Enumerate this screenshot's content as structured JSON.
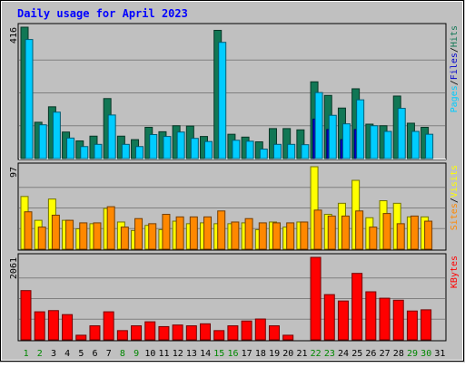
{
  "chart_data": [
    {
      "type": "bar",
      "title": "Daily usage for April 2023",
      "categories": [
        "1",
        "2",
        "3",
        "4",
        "5",
        "6",
        "7",
        "8",
        "9",
        "10",
        "11",
        "12",
        "13",
        "14",
        "15",
        "16",
        "17",
        "18",
        "19",
        "20",
        "21",
        "22",
        "23",
        "24",
        "25",
        "26",
        "27",
        "28",
        "29",
        "30",
        "31"
      ],
      "weekend_categories": [
        "1",
        "2",
        "8",
        "9",
        "15",
        "16",
        "22",
        "23",
        "29",
        "30"
      ],
      "ylim": [
        0,
        416
      ],
      "ytick_label": "416",
      "series": [
        {
          "name": "Hits",
          "color": "#117755",
          "values": [
            416,
            115,
            164,
            84,
            56,
            71,
            190,
            71,
            60,
            99,
            85,
            104,
            103,
            70,
            406,
            77,
            68,
            53,
            95,
            95,
            91,
            243,
            200,
            160,
            221,
            109,
            104,
            198,
            112,
            99,
            0
          ]
        },
        {
          "name": "Files",
          "color": "#0000cc",
          "values": [
            0,
            0,
            0,
            0,
            0,
            0,
            0,
            0,
            0,
            0,
            0,
            0,
            0,
            0,
            0,
            0,
            0,
            0,
            0,
            0,
            0,
            125,
            92,
            60,
            92,
            0,
            0,
            0,
            0,
            0,
            0
          ]
        },
        {
          "name": "Pages",
          "color": "#00ccff",
          "values": [
            377,
            107,
            147,
            65,
            38,
            45,
            138,
            45,
            38,
            76,
            70,
            84,
            64,
            54,
            368,
            58,
            55,
            30,
            45,
            45,
            44,
            209,
            137,
            110,
            186,
            104,
            86,
            159,
            86,
            77,
            0
          ]
        }
      ],
      "legend_separator": "/"
    },
    {
      "type": "bar",
      "categories": [
        "1",
        "2",
        "3",
        "4",
        "5",
        "6",
        "7",
        "8",
        "9",
        "10",
        "11",
        "12",
        "13",
        "14",
        "15",
        "16",
        "17",
        "18",
        "19",
        "20",
        "21",
        "22",
        "23",
        "24",
        "25",
        "26",
        "27",
        "28",
        "29",
        "30",
        "31"
      ],
      "ylim": [
        0,
        97
      ],
      "ytick_label": "97",
      "series": [
        {
          "name": "Visits",
          "color": "#ffff00",
          "values": [
            62,
            34,
            59,
            34,
            24,
            30,
            48,
            32,
            22,
            28,
            23,
            33,
            30,
            31,
            30,
            30,
            31,
            23,
            32,
            26,
            32,
            97,
            41,
            54,
            81,
            37,
            57,
            54,
            38,
            38,
            0
          ]
        },
        {
          "name": "Sites",
          "color": "#ff8800",
          "values": [
            44,
            26,
            40,
            34,
            31,
            31,
            50,
            26,
            36,
            30,
            41,
            38,
            38,
            38,
            45,
            32,
            36,
            31,
            31,
            31,
            32,
            46,
            39,
            39,
            45,
            26,
            42,
            30,
            39,
            33,
            0
          ]
        }
      ],
      "legend_separator": "/"
    },
    {
      "type": "bar",
      "categories": [
        "1",
        "2",
        "3",
        "4",
        "5",
        "6",
        "7",
        "8",
        "9",
        "10",
        "11",
        "12",
        "13",
        "14",
        "15",
        "16",
        "17",
        "18",
        "19",
        "20",
        "21",
        "22",
        "23",
        "24",
        "25",
        "26",
        "27",
        "28",
        "29",
        "30",
        "31"
      ],
      "ylim": [
        0,
        2061
      ],
      "ytick_label": "2061",
      "series": [
        {
          "name": "KBytes",
          "color": "#ff0000",
          "values": [
            1230,
            700,
            730,
            630,
            115,
            350,
            700,
            230,
            350,
            450,
            330,
            370,
            350,
            400,
            230,
            350,
            470,
            520,
            350,
            115,
            0,
            2061,
            1130,
            970,
            1660,
            1200,
            1040,
            990,
            720,
            750,
            0
          ]
        }
      ]
    }
  ]
}
